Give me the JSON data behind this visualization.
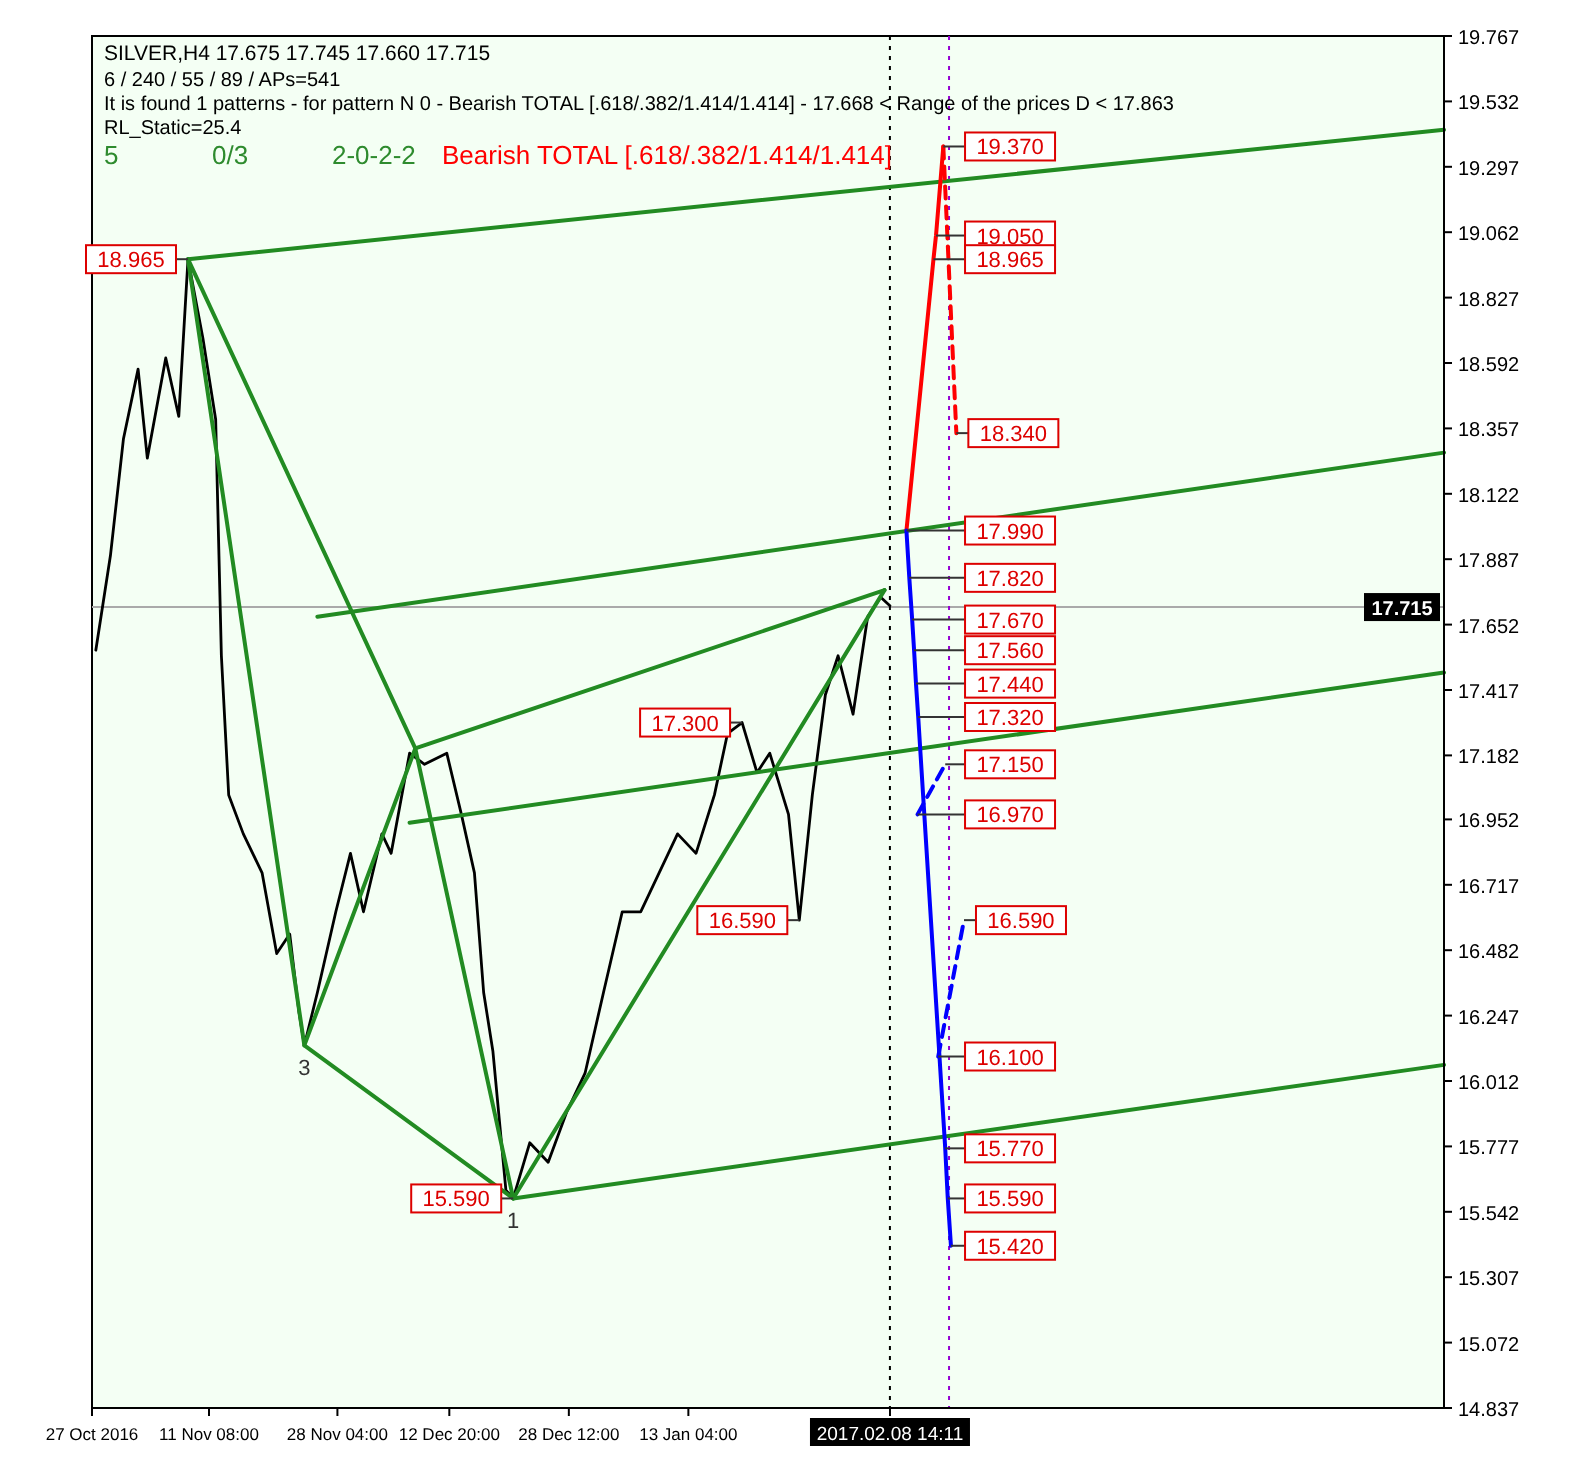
{
  "chart_data": {
    "type": "line",
    "title": "SILVER,H4  17.675 17.745 17.660 17.715",
    "xlim": [
      "2016-10-27T00:00",
      "2017-04-22T05:00"
    ],
    "xticks": [
      {
        "value": "2016-10-27T00:00",
        "label": "27 Oct 2016"
      },
      {
        "value": "2016-11-11T08:00",
        "label": "11 Nov 08:00"
      },
      {
        "value": "2016-11-28T04:00",
        "label": "28 Nov 04:00"
      },
      {
        "value": "2016-12-12T20:00",
        "label": "12 Dec 20:00"
      },
      {
        "value": "2016-12-28T12:00",
        "label": "28 Dec 12:00"
      },
      {
        "value": "2017-01-13T04:00",
        "label": "13 Jan 04:00"
      },
      {
        "value": "2017-02-08T14:11",
        "label": "2017.02.08 14:11"
      }
    ],
    "ylim": [
      14.837,
      19.767
    ],
    "yticks": [
      14.837,
      15.072,
      15.307,
      15.542,
      15.777,
      16.012,
      16.247,
      16.482,
      16.717,
      16.952,
      17.182,
      17.417,
      17.652,
      17.887,
      18.122,
      18.357,
      18.592,
      18.827,
      19.062,
      19.297,
      19.532,
      19.767
    ],
    "grid": false,
    "marker": "none",
    "series": [
      {
        "color": "#000000",
        "line_style": "solid",
        "x": [
          "2016-10-27T12:00",
          "2016-10-29T10:00",
          "2016-10-31T03:00",
          "2016-11-02T01:00",
          "2016-11-03T06:00",
          "2016-11-05T16:00",
          "2016-11-07T09:00",
          "2016-11-08T14:00",
          "2016-11-10T13:00",
          "2016-11-12T05:00",
          "2016-11-12T23:00",
          "2016-11-13T22:00",
          "2016-11-15T20:00",
          "2016-11-18T07:00",
          "2016-11-20T05:00",
          "2016-11-21T22:00",
          "2016-11-23T03:00",
          "2016-11-23T20:00",
          "2016-11-25T13:00",
          "2016-11-27T23:00",
          "2016-11-29T21:00",
          "2016-12-01T14:00",
          "2016-12-04T00:00",
          "2016-12-05T05:00",
          "2016-12-07T15:00",
          "2016-12-09T14:00",
          "2016-12-12T12:00",
          "2016-12-14T10:00",
          "2016-12-16T03:00",
          "2016-12-17T08:00",
          "2016-12-18T13:00",
          "2016-12-20T06:00",
          "2016-12-21T05:00",
          "2016-12-23T09:00",
          "2016-12-25T19:00",
          "2016-12-28T05:00",
          "2016-12-30T15:00",
          "2017-01-02T01:00",
          "2017-01-04T12:00",
          "2017-01-06T22:00",
          "2017-01-09T08:00",
          "2017-01-11T18:00",
          "2017-01-14T04:00",
          "2017-01-16T14:00",
          "2017-01-18T07:00",
          "2017-01-20T05:00",
          "2017-01-22T04:00",
          "2017-01-23T20:00",
          "2017-01-26T07:00",
          "2017-01-27T17:00",
          "2017-01-29T10:00",
          "2017-01-31T03:00",
          "2017-02-01T19:00",
          "2017-02-03T18:00",
          "2017-02-05T16:00",
          "2017-02-07T09:00",
          "2017-02-08T14:00"
        ],
        "values": [
          17.56,
          17.9,
          18.32,
          18.57,
          18.25,
          18.61,
          18.4,
          18.965,
          18.68,
          18.39,
          17.54,
          17.04,
          16.9,
          16.76,
          16.47,
          16.54,
          16.26,
          16.14,
          16.33,
          16.62,
          16.83,
          16.62,
          16.9,
          16.83,
          17.19,
          17.15,
          17.19,
          16.97,
          16.76,
          16.33,
          16.12,
          15.62,
          15.59,
          15.79,
          15.72,
          15.9,
          16.04,
          16.33,
          16.62,
          16.62,
          16.76,
          16.9,
          16.83,
          17.04,
          17.26,
          17.3,
          17.12,
          17.19,
          16.97,
          16.59,
          17.04,
          17.4,
          17.54,
          17.33,
          17.68,
          17.75,
          17.72
        ]
      },
      {
        "color": "#228b22",
        "line_style": "solid",
        "x": [
          "2016-11-08T14:00",
          "2016-11-23T20:00",
          "2016-12-08T09:00",
          "2016-12-21T05:00",
          "2017-02-07T21:00"
        ],
        "values": [
          18.965,
          16.14,
          17.207,
          15.59,
          17.776
        ]
      },
      {
        "color": "#228b22",
        "line_style": "solid",
        "x": [
          "2016-11-08T14:00",
          "2016-12-08T09:00",
          null,
          "2016-11-23T20:00",
          "2016-12-21T05:00",
          null,
          "2016-12-08T09:00",
          "2017-02-07T21:00"
        ],
        "values": [
          18.965,
          17.207,
          null,
          16.14,
          15.59,
          null,
          17.207,
          17.776
        ]
      },
      {
        "color": "#228b22",
        "line_style": "solid",
        "x": [
          "2016-11-08T14:00",
          "2017-04-22T05:00"
        ],
        "values": [
          18.965,
          19.43
        ]
      },
      {
        "color": "#228b22",
        "line_style": "solid",
        "x": [
          "2016-11-25T13:00",
          "2017-04-22T05:00"
        ],
        "values": [
          17.68,
          18.27
        ]
      },
      {
        "color": "#228b22",
        "line_style": "solid",
        "x": [
          "2016-12-07T15:00",
          "2017-04-22T05:00"
        ],
        "values": [
          16.94,
          17.48
        ]
      },
      {
        "color": "#228b22",
        "line_style": "solid",
        "x": [
          "2016-12-21T05:00",
          "2017-04-22T05:00"
        ],
        "values": [
          15.59,
          16.07
        ]
      },
      {
        "color": "#ff0000",
        "line_style": "solid",
        "x": [
          "2017-02-10T18:00",
          "2017-02-14T07:00",
          "2017-02-14T15:00",
          "2017-02-15T14:00"
        ],
        "values": [
          17.99,
          18.965,
          19.05,
          19.37
        ]
      },
      {
        "color": "#ff0000",
        "line_style": "dashed",
        "x": [
          "2017-02-15T14:00",
          "2017-02-17T07:00"
        ],
        "values": [
          19.37,
          18.34
        ]
      },
      {
        "color": "#0000ff",
        "line_style": "solid",
        "x": [
          "2017-02-10T18:00",
          "2017-02-11T03:00",
          "2017-02-11T12:00",
          "2017-02-11T18:00",
          "2017-02-12T00:00",
          "2017-02-12T07:00",
          "2017-02-15T20:00",
          "2017-02-16T04:00",
          "2017-02-16T14:00"
        ],
        "values": [
          17.99,
          17.82,
          17.67,
          17.56,
          17.44,
          17.32,
          15.77,
          15.59,
          15.42
        ]
      },
      {
        "color": "#0000ff",
        "line_style": "dashed",
        "x": [
          "2017-02-12T05:00",
          "2017-02-15T20:00",
          null,
          "2017-02-14T22:00",
          "2017-02-18T07:00"
        ],
        "values": [
          16.97,
          17.15,
          null,
          16.1,
          16.59
        ]
      }
    ],
    "ref_lines": [
      {
        "axis": "y",
        "value": 17.715,
        "label": "17.715",
        "color": "#aaaaaa"
      },
      {
        "axis": "x",
        "value": "2017-02-08T14:00",
        "color": "#000000",
        "line_style": "dotted"
      },
      {
        "axis": "x",
        "value": "2017-02-16T08:00",
        "color": "#9400d3",
        "line_style": "dotted"
      }
    ],
    "annotations": [
      "6 / 240 / 55 / 89 / APs=541",
      "It is found 1 patterns -  for pattern N 0 - Bearish TOTAL [.618/.382/1.414/1.414] - 17.668 < Range of the prices D < 17.863",
      "RL_Static=25.4",
      "5",
      "0/3",
      "2-0-2-2",
      "Bearish TOTAL [.618/.382/1.414/1.414]",
      {
        "text": "18.965",
        "x": "2016-11-08T14:00",
        "y": 18.965
      },
      {
        "text": "15.590",
        "x": "2016-12-21T05:00",
        "y": 15.59
      },
      {
        "text": "17.300",
        "x": "2017-01-20T05:00",
        "y": 17.3
      },
      {
        "text": "16.590",
        "x": "2017-01-27T17:00",
        "y": 16.59
      },
      {
        "text": "3",
        "x": "2016-11-23T20:00",
        "y": 16.14
      },
      {
        "text": "1",
        "x": "2016-12-21T05:00",
        "y": 15.59
      },
      {
        "text": "19.370",
        "x": "2017-02-15T14:00",
        "y": 19.37
      },
      {
        "text": "19.050",
        "x": "2017-02-14T15:00",
        "y": 19.05
      },
      {
        "text": "18.965",
        "x": "2017-02-14T07:00",
        "y": 18.965
      },
      {
        "text": "18.340",
        "x": "2017-02-17T07:00",
        "y": 18.34
      },
      {
        "text": "17.990",
        "x": "2017-02-10T18:00",
        "y": 17.99
      },
      {
        "text": "17.820",
        "x": "2017-02-11T03:00",
        "y": 17.82
      },
      {
        "text": "17.670",
        "x": "2017-02-11T12:00",
        "y": 17.67
      },
      {
        "text": "17.560",
        "x": "2017-02-11T18:00",
        "y": 17.56
      },
      {
        "text": "17.440",
        "x": "2017-02-12T00:00",
        "y": 17.44
      },
      {
        "text": "17.320",
        "x": "2017-02-12T07:00",
        "y": 17.32
      },
      {
        "text": "17.150",
        "x": "2017-02-15T20:00",
        "y": 17.15
      },
      {
        "text": "16.970",
        "x": "2017-02-12T05:00",
        "y": 16.97
      },
      {
        "text": "16.590",
        "x": "2017-02-18T07:00",
        "y": 16.59
      },
      {
        "text": "16.100",
        "x": "2017-02-14T22:00",
        "y": 16.1
      },
      {
        "text": "15.770",
        "x": "2017-02-15T20:00",
        "y": 15.77
      },
      {
        "text": "15.590",
        "x": "2017-02-16T04:00",
        "y": 15.59
      },
      {
        "text": "15.420",
        "x": "2017-02-16T14:00",
        "y": 15.42
      }
    ]
  }
}
